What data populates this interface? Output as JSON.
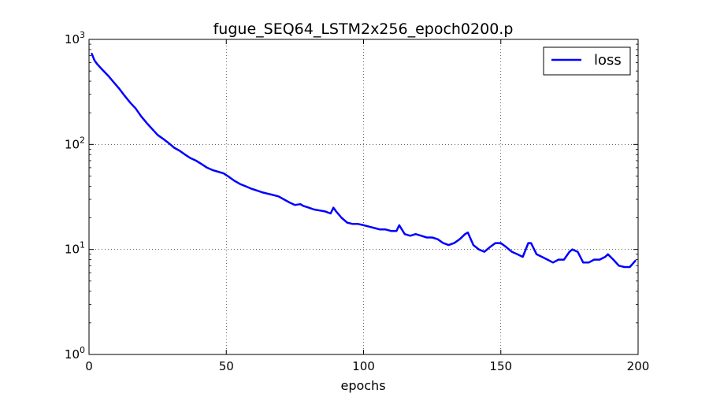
{
  "chart_data": {
    "type": "line",
    "title": "fugue_SEQ64_LSTM2x256_epoch0200.p",
    "xlabel": "epochs",
    "ylabel": "",
    "xlim": [
      0,
      200
    ],
    "ylim": [
      1,
      1000
    ],
    "yscale": "log",
    "grid": true,
    "legend_position": "top-right",
    "xticks": [
      0,
      50,
      100,
      150,
      200
    ],
    "xtick_labels": [
      "0",
      "50",
      "100",
      "150",
      "200"
    ],
    "yticks": [
      1,
      10,
      100,
      1000
    ],
    "ytick_labels": [
      {
        "base": "10",
        "exp": "0"
      },
      {
        "base": "10",
        "exp": "1"
      },
      {
        "base": "10",
        "exp": "2"
      },
      {
        "base": "10",
        "exp": "3"
      }
    ],
    "series": [
      {
        "name": "loss",
        "color": "#0000ff",
        "x": [
          1,
          2,
          3,
          5,
          7,
          9,
          11,
          13,
          15,
          17,
          19,
          21,
          23,
          25,
          27,
          29,
          31,
          33,
          35,
          37,
          39,
          41,
          43,
          45,
          47,
          49,
          51,
          53,
          55,
          57,
          59,
          61,
          63,
          65,
          67,
          69,
          71,
          73,
          75,
          77,
          78,
          80,
          82,
          84,
          86,
          88,
          89,
          90,
          92,
          94,
          96,
          98,
          100,
          102,
          104,
          106,
          108,
          110,
          112,
          113,
          115,
          117,
          119,
          121,
          123,
          125,
          127,
          129,
          131,
          133,
          135,
          137,
          138,
          140,
          142,
          144,
          146,
          148,
          150,
          152,
          154,
          156,
          158,
          160,
          161,
          163,
          165,
          167,
          169,
          171,
          173,
          175,
          176,
          178,
          180,
          182,
          184,
          186,
          188,
          189,
          191,
          193,
          195,
          197,
          199
        ],
        "values": [
          730,
          630,
          580,
          510,
          450,
          390,
          340,
          290,
          250,
          220,
          185,
          160,
          140,
          123,
          113,
          103,
          93,
          87,
          80,
          74,
          70,
          65,
          60,
          57,
          55,
          53,
          49,
          45,
          42,
          40,
          38,
          36.5,
          35,
          34,
          33,
          32,
          30,
          28,
          26.5,
          27,
          26,
          25,
          24,
          23.5,
          23,
          22,
          25,
          23,
          20,
          18,
          17.5,
          17.5,
          17,
          16.5,
          16,
          15.5,
          15.5,
          15,
          15,
          17,
          14,
          13.5,
          14,
          13.5,
          13,
          13,
          12.5,
          11.5,
          11,
          11.5,
          12.5,
          14,
          14.5,
          11,
          10,
          9.5,
          10.5,
          11.5,
          11.5,
          10.5,
          9.5,
          9,
          8.5,
          11.5,
          11.5,
          9,
          8.5,
          8,
          7.5,
          8,
          8,
          9.5,
          10,
          9.5,
          7.5,
          7.5,
          8,
          8,
          8.5,
          9,
          8,
          7,
          6.8,
          6.8,
          7.8
        ]
      }
    ]
  }
}
